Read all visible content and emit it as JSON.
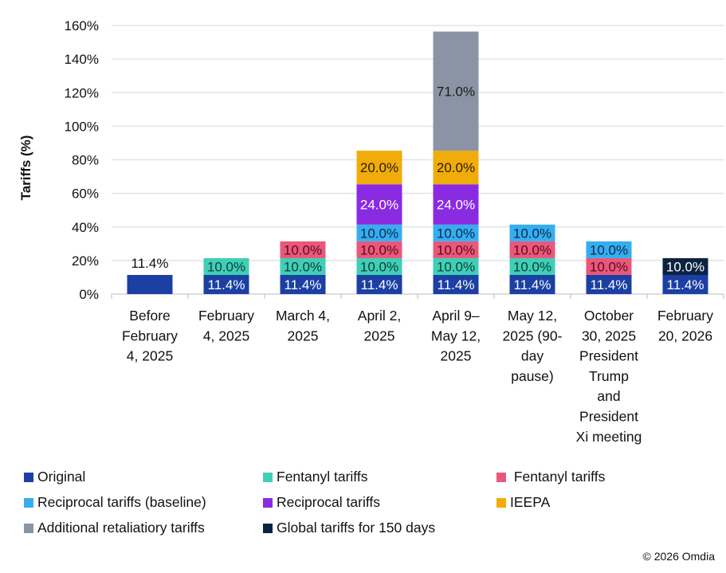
{
  "chart_data": {
    "type": "bar",
    "stacked": true,
    "title": "",
    "xlabel": "",
    "ylabel": "Tariffs (%)",
    "ylim": [
      0,
      160
    ],
    "yticks": [
      "0%",
      "20%",
      "40%",
      "60%",
      "80%",
      "100%",
      "120%",
      "140%",
      "160%"
    ],
    "grid": true,
    "legend_position": "bottom",
    "categories": [
      [
        "Before",
        "February",
        "4, 2025"
      ],
      [
        "February",
        "4, 2025"
      ],
      [
        "March 4,",
        "2025"
      ],
      [
        "April 2,",
        "2025"
      ],
      [
        "April 9–",
        "May 12,",
        "2025"
      ],
      [
        "May 12,",
        "2025 (90-",
        "day",
        "pause)"
      ],
      [
        "October",
        "30, 2025",
        "President",
        "Trump",
        "and",
        "President",
        "Xi meeting"
      ],
      [
        "February",
        "20, 2026"
      ]
    ],
    "series": [
      {
        "name": "Original",
        "color": "#1b3fa3",
        "label_color": "#ffffff",
        "values": [
          11.4,
          11.4,
          11.4,
          11.4,
          11.4,
          11.4,
          11.4,
          11.4
        ]
      },
      {
        "name": "Fentanyl tariffs",
        "color": "#3fcfb6",
        "label_color": "#0d3b36",
        "values": [
          0,
          10.0,
          10.0,
          10.0,
          10.0,
          10.0,
          0,
          0
        ]
      },
      {
        "name": " Fentanyl tariffs",
        "color": "#e9587b",
        "label_color": "#5a0a1c",
        "values": [
          0,
          0,
          10.0,
          10.0,
          10.0,
          10.0,
          10.0,
          0
        ]
      },
      {
        "name": "Reciprocal tariffs (baseline)",
        "color": "#35aef0",
        "label_color": "#0b2a4a",
        "values": [
          0,
          0,
          0,
          10.0,
          10.0,
          10.0,
          10.0,
          0
        ]
      },
      {
        "name": "Reciprocal tariffs",
        "color": "#8a2be2",
        "label_color": "#ffffff",
        "values": [
          0,
          0,
          0,
          24.0,
          24.0,
          0,
          0,
          0
        ]
      },
      {
        "name": "IEEPA",
        "color": "#f0ac0a",
        "label_color": "#2a1a00",
        "values": [
          0,
          0,
          0,
          20.0,
          20.0,
          0,
          0,
          0
        ]
      },
      {
        "name": "Additional retaliatiory tariffs",
        "color": "#8a94a5",
        "label_color": "#1a1a1a",
        "values": [
          0,
          0,
          0,
          0,
          71.0,
          0,
          0,
          0
        ]
      },
      {
        "name": "Global tariffs for 150 days",
        "color": "#0b2341",
        "label_color": "#ffffff",
        "values": [
          0,
          0,
          0,
          0,
          0,
          0,
          0,
          10.0
        ]
      }
    ],
    "data_labels_format": "0.0%"
  },
  "copyright": "© 2026 Omdia"
}
